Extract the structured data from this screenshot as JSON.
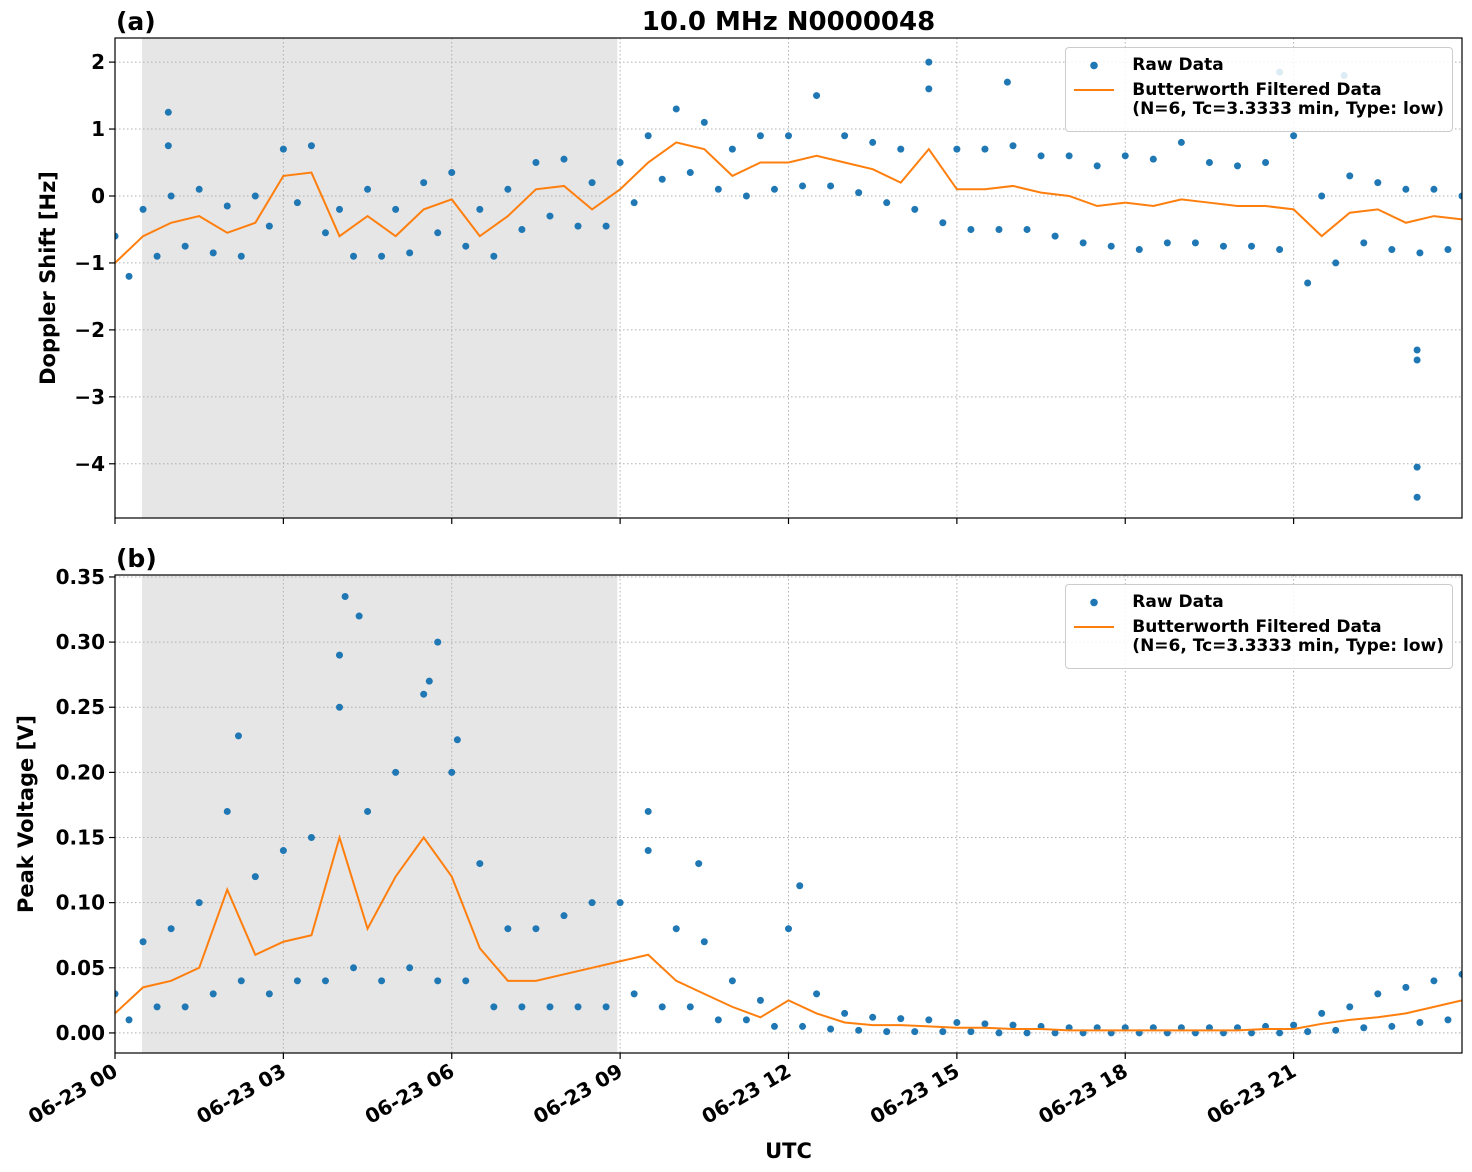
{
  "chart_data": [
    {
      "type": "line",
      "title": "10.0 MHz N0000048",
      "panel_label": "(a)",
      "ylabel": "Doppler Shift [Hz]",
      "xlim": [
        0,
        24
      ],
      "ylim": [
        -4.81,
        2.36
      ],
      "xticks": [
        0,
        3,
        6,
        9,
        12,
        15,
        18,
        21
      ],
      "show_xticklabels": false,
      "yticks": [
        {
          "value": -4,
          "label": "−4"
        },
        {
          "value": -3,
          "label": "−3"
        },
        {
          "value": -2,
          "label": "−2"
        },
        {
          "value": -1,
          "label": "−1"
        },
        0,
        1,
        2
      ],
      "grid": true,
      "shade": [
        0.48,
        8.95
      ],
      "shade_color": "#e6e6e6",
      "legend": "upper right",
      "series": [
        {
          "name": "Raw Data",
          "color": "#1f77b4",
          "style": "dots",
          "x": [
            0,
            0.25,
            0.5,
            0.75,
            1,
            1.25,
            1.5,
            1.75,
            2,
            2.25,
            2.5,
            2.75,
            3,
            3.25,
            3.5,
            3.75,
            4,
            4.25,
            4.5,
            4.75,
            5,
            5.25,
            5.5,
            5.75,
            6,
            6.25,
            6.5,
            6.75,
            7,
            7.25,
            7.5,
            7.75,
            8,
            8.25,
            8.5,
            8.75,
            9,
            9.25,
            9.5,
            9.75,
            10,
            10.25,
            10.5,
            10.75,
            11,
            11.25,
            11.5,
            11.75,
            12,
            12.25,
            12.5,
            12.75,
            13,
            13.25,
            13.5,
            13.75,
            14,
            14.25,
            14.5,
            14.75,
            15,
            15.25,
            15.5,
            15.75,
            16,
            16.25,
            16.5,
            16.75,
            17,
            17.25,
            17.5,
            17.75,
            18,
            18.25,
            18.5,
            18.75,
            19,
            19.25,
            19.5,
            19.75,
            20,
            20.25,
            20.5,
            20.75,
            21,
            21.25,
            21.5,
            21.75,
            22,
            22.25,
            22.5,
            22.75,
            23,
            23.25,
            23.5,
            23.75,
            24,
            0.95,
            0.95,
            14.5,
            20.75,
            21.9,
            23.2,
            23.2,
            23.2,
            23.2,
            15.9
          ],
          "values": [
            -0.6,
            -1.2,
            -0.2,
            -0.9,
            0.0,
            -0.75,
            0.1,
            -0.85,
            -0.15,
            -0.9,
            0.0,
            -0.45,
            0.7,
            -0.1,
            0.75,
            -0.55,
            -0.2,
            -0.9,
            0.1,
            -0.9,
            -0.2,
            -0.85,
            0.2,
            -0.55,
            0.35,
            -0.75,
            -0.2,
            -0.9,
            0.1,
            -0.5,
            0.5,
            -0.3,
            0.55,
            -0.45,
            0.2,
            -0.45,
            0.5,
            -0.1,
            0.9,
            0.25,
            1.3,
            0.35,
            1.1,
            0.1,
            0.7,
            0.0,
            0.9,
            0.1,
            0.9,
            0.15,
            1.5,
            0.15,
            0.9,
            0.05,
            0.8,
            -0.1,
            0.7,
            -0.2,
            1.6,
            -0.4,
            0.7,
            -0.5,
            0.7,
            -0.5,
            0.75,
            -0.5,
            0.6,
            -0.6,
            0.6,
            -0.7,
            0.45,
            -0.75,
            0.6,
            -0.8,
            0.55,
            -0.7,
            0.8,
            -0.7,
            0.5,
            -0.75,
            0.45,
            -0.75,
            0.5,
            -0.8,
            0.9,
            -1.3,
            0.0,
            -1.0,
            0.3,
            -0.7,
            0.2,
            -0.8,
            0.1,
            -0.85,
            0.1,
            -0.8,
            0.0,
            1.25,
            0.75,
            2.0,
            1.85,
            1.8,
            -2.3,
            -4.05,
            -4.5,
            -2.45,
            1.7
          ]
        },
        {
          "name": "Butterworth Filtered Data\n(N=6, Tc=3.3333 min, Type: low)",
          "color": "#ff7f0e",
          "style": "line",
          "x": [
            0,
            0.5,
            1,
            1.5,
            2,
            2.5,
            3,
            3.5,
            4,
            4.5,
            5,
            5.5,
            6,
            6.5,
            7,
            7.5,
            8,
            8.5,
            9,
            9.5,
            10,
            10.5,
            11,
            11.5,
            12,
            12.5,
            13,
            13.5,
            14,
            14.5,
            15,
            15.5,
            16,
            16.5,
            17,
            17.5,
            18,
            18.5,
            19,
            19.5,
            20,
            20.5,
            21,
            21.5,
            22,
            22.5,
            23,
            23.5,
            24
          ],
          "values": [
            -1.0,
            -0.6,
            -0.4,
            -0.3,
            -0.55,
            -0.4,
            0.3,
            0.35,
            -0.6,
            -0.3,
            -0.6,
            -0.2,
            -0.05,
            -0.6,
            -0.3,
            0.1,
            0.15,
            -0.2,
            0.1,
            0.5,
            0.8,
            0.7,
            0.3,
            0.5,
            0.5,
            0.6,
            0.5,
            0.4,
            0.2,
            0.7,
            0.1,
            0.1,
            0.15,
            0.05,
            0.0,
            -0.15,
            -0.1,
            -0.15,
            -0.05,
            -0.1,
            -0.15,
            -0.15,
            -0.2,
            -0.6,
            -0.25,
            -0.2,
            -0.4,
            -0.3,
            -0.35
          ]
        }
      ]
    },
    {
      "type": "line",
      "panel_label": "(b)",
      "ylabel": "Peak Voltage [V]",
      "xlabel": "UTC",
      "xlim": [
        0,
        24
      ],
      "ylim": [
        -0.0154,
        0.3515
      ],
      "xticks": [
        {
          "value": 0,
          "label": "06-23 00"
        },
        {
          "value": 3,
          "label": "06-23 03"
        },
        {
          "value": 6,
          "label": "06-23 06"
        },
        {
          "value": 9,
          "label": "06-23 09"
        },
        {
          "value": 12,
          "label": "06-23 12"
        },
        {
          "value": 15,
          "label": "06-23 15"
        },
        {
          "value": 18,
          "label": "06-23 18"
        },
        {
          "value": 21,
          "label": "06-23 21"
        }
      ],
      "show_xticklabels": true,
      "yticks": [
        {
          "value": 0,
          "label": "0.00"
        },
        0.05,
        {
          "value": 0.1,
          "label": "0.10"
        },
        0.15,
        {
          "value": 0.2,
          "label": "0.20"
        },
        0.25,
        {
          "value": 0.3,
          "label": "0.30"
        },
        0.35
      ],
      "grid": true,
      "shade": [
        0.48,
        8.95
      ],
      "shade_color": "#e6e6e6",
      "legend": "upper right",
      "series": [
        {
          "name": "Raw Data",
          "color": "#1f77b4",
          "style": "dots",
          "x": [
            0,
            0.25,
            0.5,
            0.75,
            1,
            1.25,
            1.5,
            1.75,
            2,
            2.25,
            2.5,
            2.75,
            3,
            3.25,
            3.5,
            3.75,
            4,
            4.25,
            4.5,
            4.75,
            5,
            5.25,
            5.5,
            5.75,
            6,
            6.25,
            6.5,
            6.75,
            7,
            7.25,
            7.5,
            7.75,
            8,
            8.25,
            8.5,
            8.75,
            9,
            9.25,
            9.5,
            9.75,
            10,
            10.25,
            10.5,
            10.75,
            11,
            11.25,
            11.5,
            11.75,
            12,
            12.25,
            12.5,
            12.75,
            13,
            13.25,
            13.5,
            13.75,
            14,
            14.25,
            14.5,
            14.75,
            15,
            15.25,
            15.5,
            15.75,
            16,
            16.25,
            16.5,
            16.75,
            17,
            17.25,
            17.5,
            17.75,
            18,
            18.25,
            18.5,
            18.75,
            19,
            19.25,
            19.5,
            19.75,
            20,
            20.25,
            20.5,
            20.75,
            21,
            21.25,
            21.5,
            21.75,
            22,
            22.25,
            22.5,
            22.75,
            23,
            23.25,
            23.5,
            23.75,
            24,
            4.1,
            4.35,
            5.75,
            2.2,
            9.5,
            10.4,
            12.2,
            6.1,
            4.0,
            5.6
          ],
          "values": [
            0.03,
            0.01,
            0.07,
            0.02,
            0.08,
            0.02,
            0.1,
            0.03,
            0.17,
            0.04,
            0.12,
            0.03,
            0.14,
            0.04,
            0.15,
            0.04,
            0.25,
            0.05,
            0.17,
            0.04,
            0.2,
            0.05,
            0.26,
            0.04,
            0.2,
            0.04,
            0.13,
            0.02,
            0.08,
            0.02,
            0.08,
            0.02,
            0.09,
            0.02,
            0.1,
            0.02,
            0.1,
            0.03,
            0.14,
            0.02,
            0.08,
            0.02,
            0.07,
            0.01,
            0.04,
            0.01,
            0.025,
            0.005,
            0.08,
            0.005,
            0.03,
            0.003,
            0.015,
            0.002,
            0.012,
            0.001,
            0.011,
            0.001,
            0.01,
            0.001,
            0.008,
            0.001,
            0.007,
            0.0,
            0.006,
            0.0,
            0.005,
            0.0,
            0.004,
            0.0,
            0.004,
            0.0,
            0.004,
            0.0,
            0.004,
            0.0,
            0.004,
            0.0,
            0.004,
            0.0,
            0.004,
            0.0,
            0.005,
            0.0,
            0.006,
            0.001,
            0.015,
            0.002,
            0.02,
            0.004,
            0.03,
            0.005,
            0.035,
            0.008,
            0.04,
            0.01,
            0.045,
            0.335,
            0.32,
            0.3,
            0.228,
            0.17,
            0.13,
            0.113,
            0.225,
            0.29,
            0.27
          ]
        },
        {
          "name": "Butterworth Filtered Data\n(N=6, Tc=3.3333 min, Type: low)",
          "color": "#ff7f0e",
          "style": "line",
          "x": [
            0,
            0.5,
            1,
            1.5,
            2,
            2.5,
            3,
            3.5,
            4,
            4.5,
            5,
            5.5,
            6,
            6.5,
            7,
            7.5,
            8,
            8.5,
            9,
            9.5,
            10,
            10.5,
            11,
            11.5,
            12,
            12.5,
            13,
            13.5,
            14,
            14.5,
            15,
            15.5,
            16,
            16.5,
            17,
            17.5,
            18,
            18.5,
            19,
            19.5,
            20,
            20.5,
            21,
            21.5,
            22,
            22.5,
            23,
            23.5,
            24
          ],
          "values": [
            0.015,
            0.035,
            0.04,
            0.05,
            0.11,
            0.06,
            0.07,
            0.075,
            0.15,
            0.08,
            0.12,
            0.15,
            0.12,
            0.065,
            0.04,
            0.04,
            0.045,
            0.05,
            0.055,
            0.06,
            0.04,
            0.03,
            0.02,
            0.012,
            0.025,
            0.015,
            0.008,
            0.006,
            0.006,
            0.005,
            0.004,
            0.004,
            0.003,
            0.003,
            0.002,
            0.002,
            0.002,
            0.002,
            0.002,
            0.002,
            0.002,
            0.003,
            0.003,
            0.007,
            0.01,
            0.012,
            0.015,
            0.02,
            0.025
          ]
        }
      ]
    }
  ]
}
